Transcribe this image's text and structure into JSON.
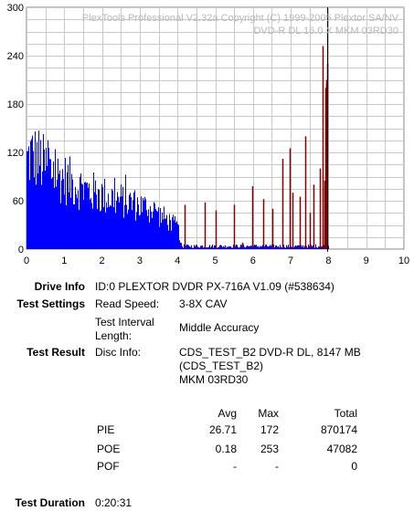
{
  "chart_data": {
    "type": "bar",
    "overlay_text_line1": "PlexTools Professional V2.32a Copyright (C) 1999-2005 Plextor SA/NV",
    "overlay_text_line2": "DVD-R DL   16.0 X   MKM 03RD30",
    "xlim": [
      0,
      10
    ],
    "ylim": [
      0,
      300
    ],
    "x_ticks": [
      "0",
      "1",
      "2",
      "3",
      "4",
      "5",
      "6",
      "7",
      "8",
      "9",
      "10"
    ],
    "y_ticks": [
      "0",
      "60",
      "120",
      "180",
      "240",
      "300"
    ],
    "grid": true,
    "cursor_x": 7.96,
    "series": [
      {
        "name": "PIE",
        "color": "#0000ff",
        "envelope": [
          [
            0,
            150
          ],
          [
            0.1,
            160
          ],
          [
            0.3,
            155
          ],
          [
            0.5,
            140
          ],
          [
            0.7,
            130
          ],
          [
            1.0,
            120
          ],
          [
            1.3,
            110
          ],
          [
            1.6,
            100
          ],
          [
            2.0,
            92
          ],
          [
            2.4,
            85
          ],
          [
            2.8,
            78
          ],
          [
            3.2,
            70
          ],
          [
            3.6,
            55
          ],
          [
            3.9,
            42
          ],
          [
            4.0,
            38
          ],
          [
            4.1,
            5
          ],
          [
            8.0,
            5
          ]
        ]
      },
      {
        "name": "POE",
        "color": "#800000",
        "spikes": [
          [
            4.18,
            55
          ],
          [
            4.5,
            5
          ],
          [
            4.72,
            58
          ],
          [
            5.02,
            48
          ],
          [
            5.25,
            4
          ],
          [
            5.5,
            55
          ],
          [
            5.72,
            8
          ],
          [
            5.98,
            78
          ],
          [
            6.28,
            62
          ],
          [
            6.52,
            50
          ],
          [
            6.78,
            112
          ],
          [
            6.98,
            125
          ],
          [
            7.05,
            70
          ],
          [
            7.25,
            65
          ],
          [
            7.38,
            140
          ],
          [
            7.5,
            45
          ],
          [
            7.6,
            80
          ],
          [
            7.78,
            100
          ],
          [
            7.84,
            252
          ],
          [
            7.9,
            85
          ],
          [
            7.92,
            200
          ],
          [
            7.94,
            205
          ],
          [
            7.95,
            210
          ],
          [
            7.96,
            230
          ]
        ]
      }
    ]
  },
  "info": {
    "drive_info_label": "Drive Info",
    "drive_info_value": "ID:0 PLEXTOR DVDR PX-716A V1.09 (#538634)",
    "test_settings_label": "Test Settings",
    "read_speed_label": "Read Speed:",
    "read_speed_value": "3-8X CAV",
    "interval_label_1": "Test Interval",
    "interval_label_2": "Length:",
    "interval_value": "Middle Accuracy",
    "test_result_label": "Test Result",
    "disc_info_label": "Disc Info:",
    "disc_info_line1": "CDS_TEST_B2 DVD-R DL, 8147 MB",
    "disc_info_line2": "(CDS_TEST_B2)",
    "disc_info_line3": "MKM 03RD30",
    "duration_label": "Test Duration",
    "duration_value": "0:20:31"
  },
  "stats": {
    "headers": [
      "Avg",
      "Max",
      "Total"
    ],
    "rows": [
      {
        "name": "PIE",
        "avg": "26.71",
        "max": "172",
        "total": "870174"
      },
      {
        "name": "POE",
        "avg": "0.18",
        "max": "253",
        "total": "47082"
      },
      {
        "name": "POF",
        "avg": "-",
        "max": "-",
        "total": "0"
      }
    ]
  }
}
